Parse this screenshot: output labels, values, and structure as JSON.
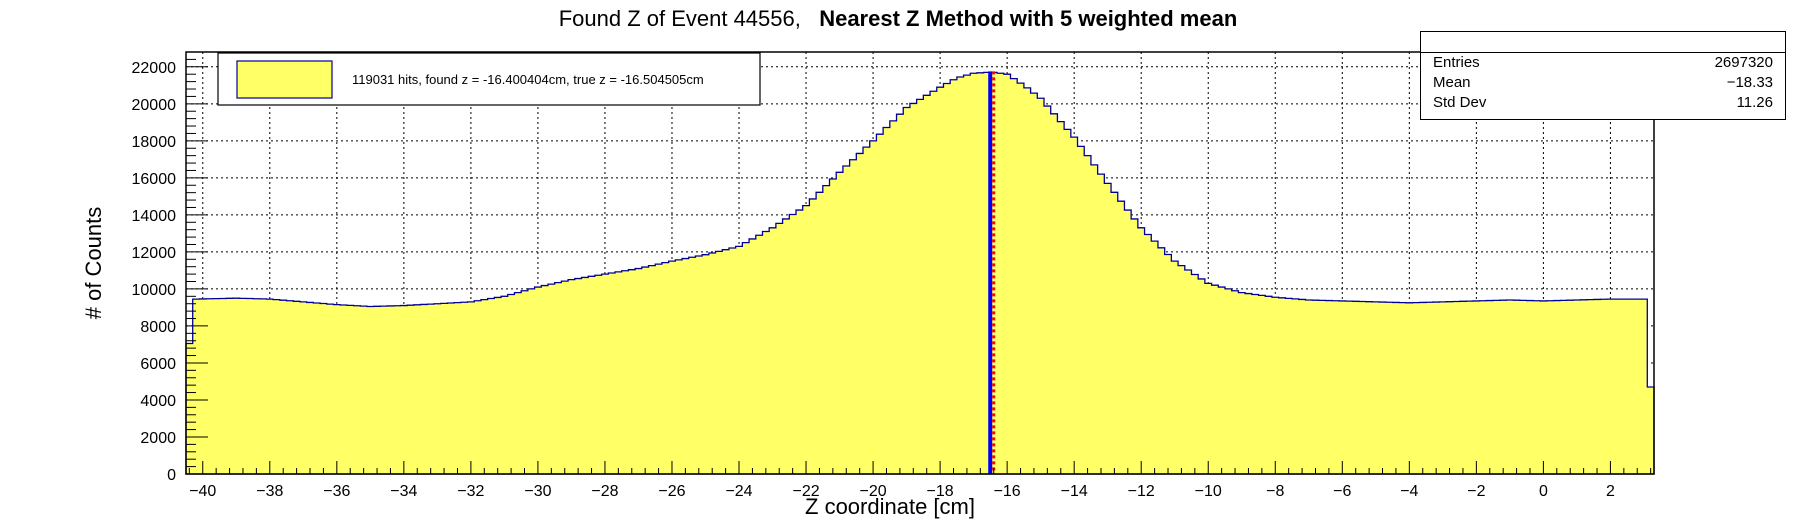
{
  "title": {
    "prefix": "Found Z of Event 44556,   ",
    "bold": "Nearest Z Method with 5 weighted mean"
  },
  "stats": {
    "rows": [
      {
        "key": "Entries",
        "value": "2697320"
      },
      {
        "key": "Mean",
        "value": "−18.33"
      },
      {
        "key": "Std Dev",
        "value": "11.26"
      }
    ]
  },
  "legend": {
    "entry": "119031 hits, found z = -16.400404cm, true z = -16.504505cm"
  },
  "chart_data": {
    "type": "bar",
    "title": "Found Z of Event 44556,   Nearest Z Method with 5 weighted mean",
    "xlabel": "Z coordinate [cm]",
    "ylabel": "# of Counts",
    "xlim": [
      -40.5,
      3.3
    ],
    "ylim": [
      0,
      22800
    ],
    "x_ticks": [
      -40,
      -38,
      -36,
      -34,
      -32,
      -30,
      -28,
      -26,
      -24,
      -22,
      -20,
      -18,
      -16,
      -14,
      -12,
      -10,
      -8,
      -6,
      -4,
      -2,
      0,
      2
    ],
    "x_tick_labels": [
      "−40",
      "−38",
      "−36",
      "−34",
      "−32",
      "−30",
      "−28",
      "−26",
      "−24",
      "−22",
      "−20",
      "−18",
      "−16",
      "−14",
      "−12",
      "−10",
      "−8",
      "−6",
      "−4",
      "−2",
      "0",
      "2"
    ],
    "y_ticks": [
      0,
      2000,
      4000,
      6000,
      8000,
      10000,
      12000,
      14000,
      16000,
      18000,
      20000,
      22000
    ],
    "y_tick_labels": [
      "0",
      "2000",
      "4000",
      "6000",
      "8000",
      "10000",
      "12000",
      "14000",
      "16000",
      "18000",
      "20000",
      "22000"
    ],
    "grid": true,
    "fill_color": "#ffff66",
    "line_color": "#000099",
    "marker_lines": [
      {
        "label": "true z",
        "x": -16.504505,
        "color": "#0000ff"
      },
      {
        "label": "found z",
        "x": -16.400404,
        "color": "#ff0000"
      }
    ],
    "legend_position": "top-left",
    "series": [
      {
        "bin_width": 0.2,
        "profile_x": [
          -40.5,
          -40.3,
          -40.2,
          -39.0,
          -38.0,
          -37.0,
          -36.0,
          -35.0,
          -34.0,
          -33.0,
          -32.0,
          -31.0,
          -30.0,
          -29.0,
          -28.0,
          -27.0,
          -26.0,
          -25.0,
          -24.0,
          -23.0,
          -22.0,
          -21.0,
          -20.0,
          -19.0,
          -18.0,
          -17.5,
          -17.0,
          -16.6,
          -16.4,
          -16.0,
          -15.5,
          -15.0,
          -14.0,
          -13.0,
          -12.0,
          -11.0,
          -10.0,
          -9.0,
          -8.0,
          -7.0,
          -6.0,
          -5.0,
          -4.0,
          -3.0,
          -2.0,
          -1.0,
          0.0,
          1.0,
          2.0,
          3.0,
          3.1,
          3.3
        ],
        "profile_y": [
          4700,
          9400,
          9450,
          9500,
          9450,
          9300,
          9150,
          9050,
          9100,
          9200,
          9300,
          9600,
          10100,
          10500,
          10800,
          11100,
          11500,
          11850,
          12300,
          13300,
          14500,
          16300,
          18000,
          19800,
          20900,
          21400,
          21650,
          21700,
          21700,
          21600,
          21000,
          20300,
          18200,
          15700,
          13300,
          11500,
          10300,
          9800,
          9550,
          9400,
          9350,
          9300,
          9250,
          9300,
          9350,
          9400,
          9350,
          9400,
          9450,
          9450,
          4700,
          4700
        ]
      }
    ]
  }
}
